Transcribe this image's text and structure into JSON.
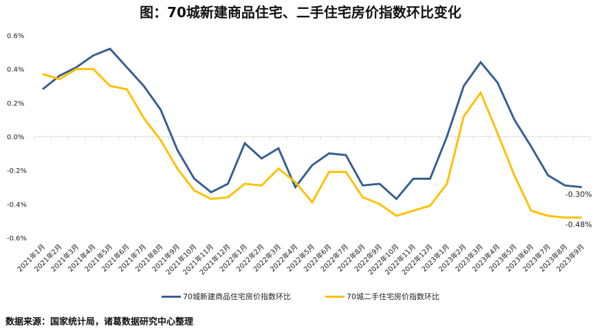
{
  "title": "图：70城新建商品住宅、二手住宅房价指数环比变化",
  "source": "数据来源：国家统计局，诸葛数据研究中心整理",
  "colors": {
    "new_homes": "#375f8f",
    "used_homes": "#ffc000",
    "axis": "#d9d9d9"
  },
  "chart_data": {
    "type": "line",
    "title": "图：70城新建商品住宅、二手住宅房价指数环比变化",
    "xlabel": "",
    "ylabel": "",
    "ylim": [
      -0.6,
      0.6
    ],
    "yticks": [
      "0.6%",
      "0.4%",
      "0.2%",
      "0.0%",
      "-0.2%",
      "-0.4%",
      "-0.6%"
    ],
    "ytick_values": [
      0.6,
      0.4,
      0.2,
      0.0,
      -0.2,
      -0.4,
      -0.6
    ],
    "grid": false,
    "legend_position": "bottom",
    "categories": [
      "2021年1月",
      "2021年2月",
      "2021年3月",
      "2021年4月",
      "2021年5月",
      "2021年6月",
      "2021年7月",
      "2021年8月",
      "2021年9月",
      "2021年10月",
      "2021年11月",
      "2021年12月",
      "2022年1月",
      "2022年2月",
      "2022年3月",
      "2022年4月",
      "2022年5月",
      "2022年6月",
      "2022年7月",
      "2022年8月",
      "2022年9月",
      "2022年10月",
      "2022年11月",
      "2022年12月",
      "2023年1月",
      "2023年2月",
      "2023年3月",
      "2023年4月",
      "2023年5月",
      "2023年6月",
      "2023年7月",
      "2023年8月",
      "2023年9月"
    ],
    "series": [
      {
        "name": "70城新建商品住宅房价指数环比",
        "color": "#375f8f",
        "values": [
          0.28,
          0.36,
          0.41,
          0.48,
          0.52,
          0.41,
          0.3,
          0.16,
          -0.08,
          -0.25,
          -0.33,
          -0.28,
          -0.04,
          -0.13,
          -0.07,
          -0.3,
          -0.17,
          -0.1,
          -0.11,
          -0.29,
          -0.28,
          -0.37,
          -0.25,
          -0.25,
          0.0,
          0.3,
          0.44,
          0.32,
          0.1,
          -0.06,
          -0.23,
          -0.29,
          -0.3
        ],
        "end_label": "-0.30%"
      },
      {
        "name": "70城二手住宅房价指数环比",
        "color": "#ffc000",
        "values": [
          0.37,
          0.34,
          0.4,
          0.4,
          0.3,
          0.28,
          0.11,
          -0.02,
          -0.19,
          -0.32,
          -0.37,
          -0.36,
          -0.28,
          -0.29,
          -0.19,
          -0.27,
          -0.39,
          -0.21,
          -0.21,
          -0.36,
          -0.4,
          -0.47,
          -0.44,
          -0.41,
          -0.28,
          0.12,
          0.26,
          0.02,
          -0.23,
          -0.44,
          -0.47,
          -0.48,
          -0.48
        ],
        "end_label": "-0.48%"
      }
    ]
  }
}
